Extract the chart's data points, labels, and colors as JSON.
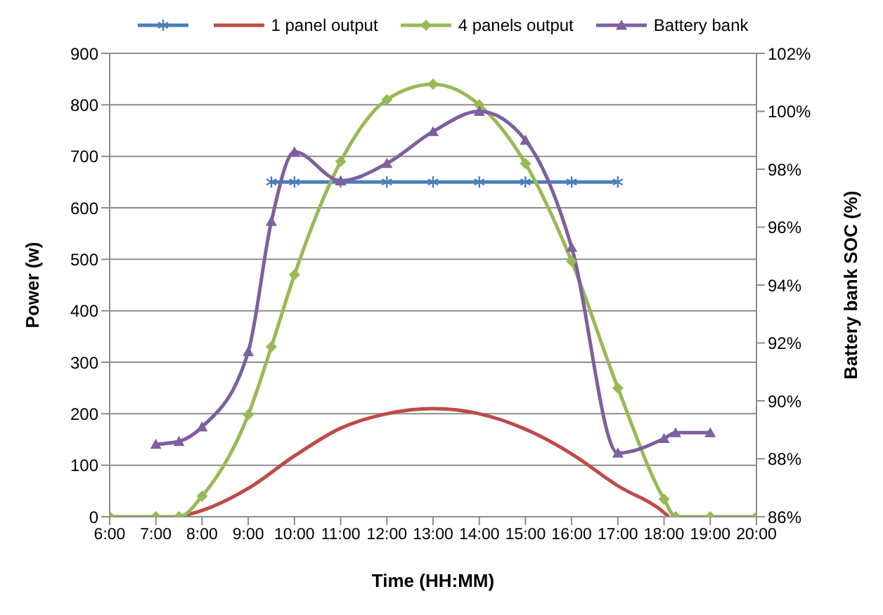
{
  "chart_data": {
    "type": "line",
    "xlabel": "Time (HH:MM)",
    "ylabel": "Power (w)",
    "y2label": "Battery bank SOC (%)",
    "xlim": [
      6,
      20
    ],
    "xticks": [
      {
        "value": 6,
        "label": "6:00"
      },
      {
        "value": 7,
        "label": "7:00"
      },
      {
        "value": 8,
        "label": "8:00"
      },
      {
        "value": 9,
        "label": "9:00"
      },
      {
        "value": 10,
        "label": "10:00"
      },
      {
        "value": 11,
        "label": "11:00"
      },
      {
        "value": 12,
        "label": "12:00"
      },
      {
        "value": 13,
        "label": "13:00"
      },
      {
        "value": 14,
        "label": "14:00"
      },
      {
        "value": 15,
        "label": "15:00"
      },
      {
        "value": 16,
        "label": "16:00"
      },
      {
        "value": 17,
        "label": "17:00"
      },
      {
        "value": 18,
        "label": "18:00"
      },
      {
        "value": 19,
        "label": "19:00"
      },
      {
        "value": 20,
        "label": "20:00"
      }
    ],
    "ylim": [
      0,
      900
    ],
    "yticks": [
      0,
      100,
      200,
      300,
      400,
      500,
      600,
      700,
      800,
      900
    ],
    "y2lim": [
      86,
      102
    ],
    "y2ticks": [
      {
        "value": 86,
        "label": "86%"
      },
      {
        "value": 88,
        "label": "88%"
      },
      {
        "value": 90,
        "label": "90%"
      },
      {
        "value": 92,
        "label": "92%"
      },
      {
        "value": 94,
        "label": "94%"
      },
      {
        "value": 96,
        "label": "96%"
      },
      {
        "value": 98,
        "label": "98%"
      },
      {
        "value": 100,
        "label": "100%"
      },
      {
        "value": 102,
        "label": "102%"
      }
    ],
    "grid": "y",
    "legend": "top",
    "series": [
      {
        "color": "#4a7ebb",
        "marker": "cross",
        "x": [
          9.5,
          10,
          11,
          12,
          13,
          14,
          15,
          16,
          17
        ],
        "values": [
          650,
          650,
          650,
          650,
          650,
          650,
          650,
          650,
          650
        ]
      },
      {
        "name": "1 panel output",
        "color": "#be4b48",
        "marker": "none",
        "x": [
          7.5,
          8,
          9,
          10,
          11,
          12,
          13,
          14,
          15,
          16,
          17,
          18,
          18.1
        ],
        "values": [
          0,
          12,
          55,
          118,
          172,
          200,
          210,
          200,
          170,
          122,
          60,
          8,
          0
        ]
      },
      {
        "name": "4 panels output",
        "color": "#98b954",
        "marker": "diamond",
        "x": [
          6,
          7,
          7.5,
          8,
          9,
          9.5,
          10,
          11,
          12,
          13,
          14,
          15,
          16,
          17,
          18,
          18.25,
          19,
          20
        ],
        "values": [
          0,
          0,
          0,
          40,
          198,
          330,
          470,
          690,
          810,
          840,
          800,
          686,
          496,
          250,
          34,
          0,
          0,
          0
        ]
      },
      {
        "name": "Battery bank",
        "color": "#7d60a0",
        "marker": "triangle",
        "axis": "y2",
        "x": [
          7,
          7.5,
          8,
          9,
          9.5,
          10,
          11,
          12,
          13,
          14,
          15,
          16,
          17,
          18,
          18.25,
          19
        ],
        "values": [
          88.5,
          88.6,
          89.1,
          91.7,
          96.2,
          98.6,
          97.6,
          98.2,
          99.3,
          100,
          99,
          95.3,
          88.2,
          88.7,
          88.9,
          88.9
        ]
      }
    ]
  }
}
